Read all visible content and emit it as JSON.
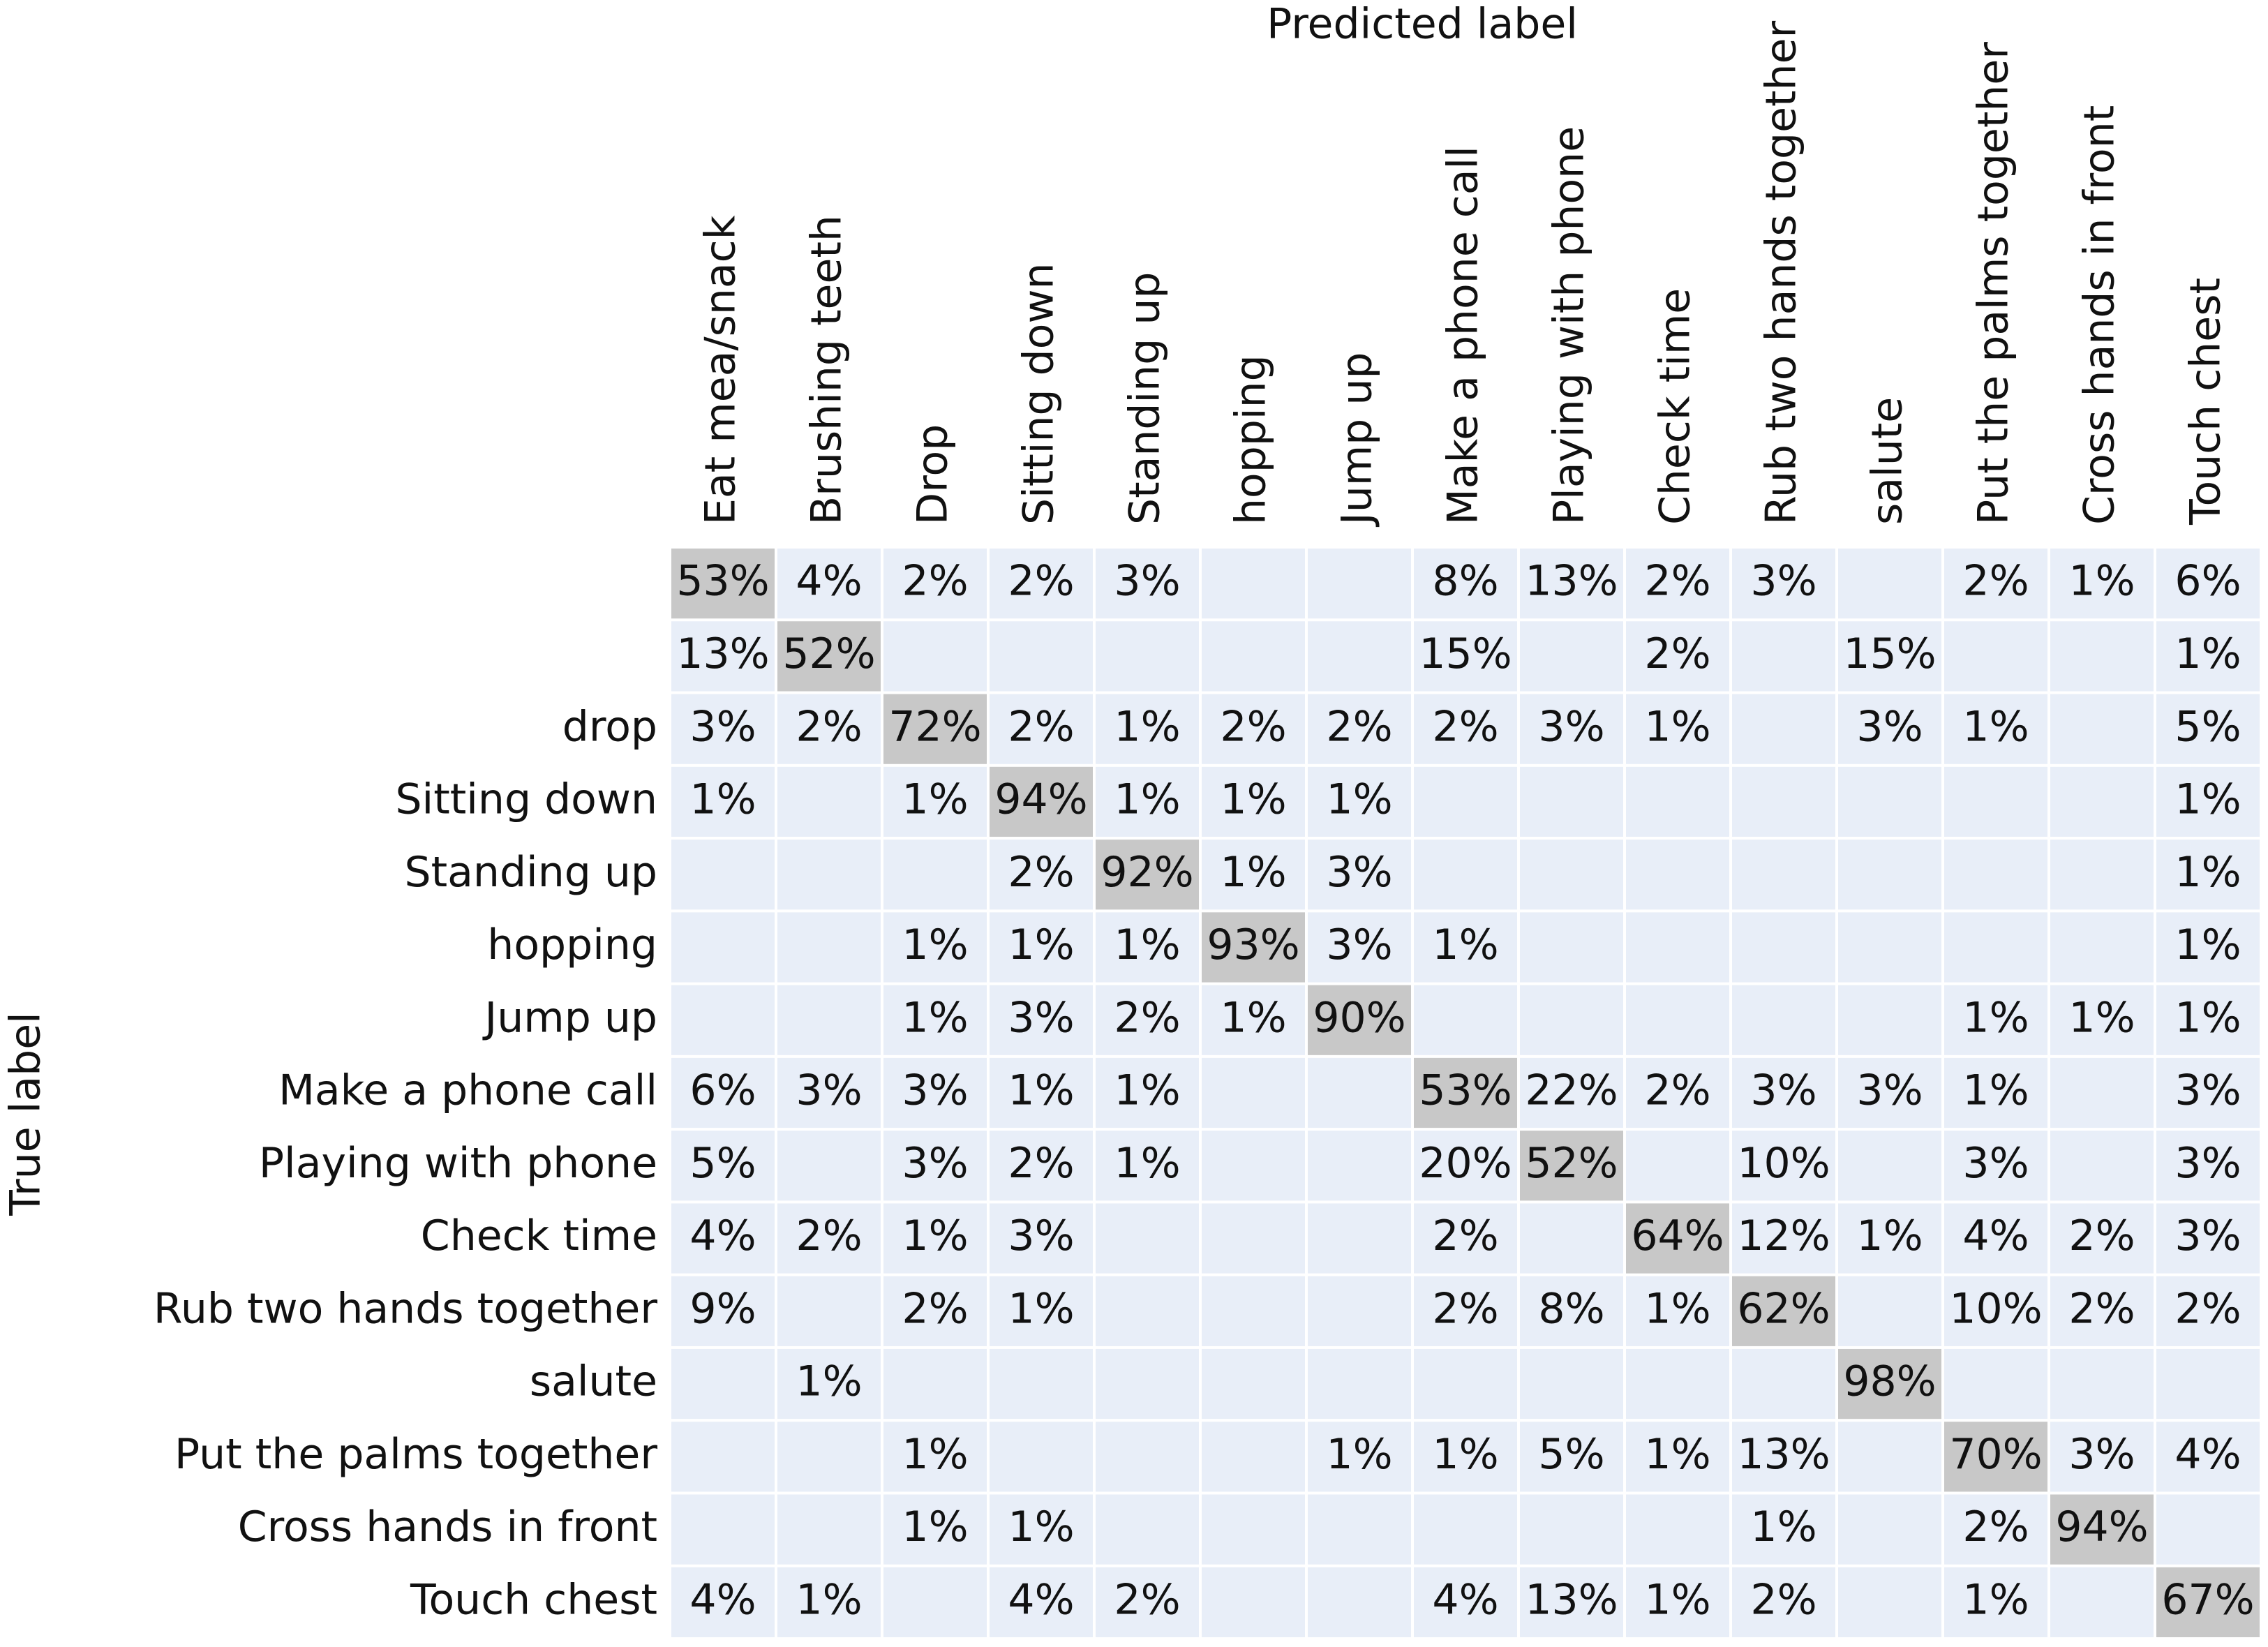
{
  "chart_data": {
    "type": "heatmap",
    "title": "Predicted label",
    "y_label": "True label",
    "x_categories": [
      "Eat mea/snack",
      "Brushing teeth",
      "Drop",
      "Sitting down",
      "Standing up",
      "hopping",
      "Jump up",
      "Make a phone call",
      "Playing with phone",
      "Check time",
      "Rub two hands together",
      "salute",
      "Put the palms together",
      "Cross hands in front",
      "Touch chest"
    ],
    "y_categories": [
      null,
      null,
      "drop",
      "Sitting down",
      "Standing up",
      "hopping",
      "Jump up",
      "Make a phone call",
      "Playing with phone",
      "Check time",
      "Rub two hands together",
      "salute",
      "Put the palms together",
      "Cross hands in front",
      "Touch chest"
    ],
    "values": [
      [
        53,
        4,
        2,
        2,
        3,
        null,
        null,
        8,
        13,
        2,
        3,
        null,
        2,
        1,
        6
      ],
      [
        13,
        52,
        null,
        null,
        null,
        null,
        null,
        15,
        null,
        2,
        null,
        15,
        null,
        null,
        1
      ],
      [
        3,
        2,
        72,
        2,
        1,
        2,
        2,
        2,
        3,
        1,
        null,
        3,
        1,
        null,
        5
      ],
      [
        1,
        null,
        1,
        94,
        1,
        1,
        1,
        null,
        null,
        null,
        null,
        null,
        null,
        null,
        1
      ],
      [
        null,
        null,
        null,
        2,
        92,
        1,
        3,
        null,
        null,
        null,
        null,
        null,
        null,
        null,
        1
      ],
      [
        null,
        null,
        1,
        1,
        1,
        93,
        3,
        1,
        null,
        null,
        null,
        null,
        null,
        null,
        1
      ],
      [
        null,
        null,
        1,
        3,
        2,
        1,
        90,
        null,
        null,
        null,
        null,
        null,
        1,
        1,
        1
      ],
      [
        6,
        3,
        3,
        1,
        1,
        null,
        null,
        53,
        22,
        2,
        3,
        3,
        1,
        null,
        3
      ],
      [
        5,
        null,
        3,
        2,
        1,
        null,
        null,
        20,
        52,
        null,
        10,
        null,
        3,
        null,
        3
      ],
      [
        4,
        2,
        1,
        3,
        null,
        null,
        null,
        2,
        null,
        64,
        12,
        1,
        4,
        2,
        3
      ],
      [
        9,
        null,
        2,
        1,
        null,
        null,
        null,
        2,
        8,
        1,
        62,
        null,
        10,
        2,
        2
      ],
      [
        null,
        1,
        null,
        null,
        null,
        null,
        null,
        null,
        null,
        null,
        null,
        98,
        null,
        null,
        null
      ],
      [
        null,
        null,
        1,
        null,
        null,
        null,
        1,
        1,
        5,
        1,
        13,
        null,
        70,
        3,
        4
      ],
      [
        null,
        null,
        1,
        1,
        null,
        null,
        null,
        null,
        null,
        null,
        1,
        null,
        2,
        94,
        null
      ],
      [
        4,
        1,
        null,
        4,
        2,
        null,
        null,
        4,
        13,
        1,
        2,
        null,
        1,
        null,
        67
      ]
    ],
    "value_labels": [
      [
        "53%",
        "4%",
        "2%",
        "2%",
        "3%",
        null,
        null,
        "8%",
        "13%",
        "2%",
        "3%",
        null,
        "2%",
        "1%",
        "6%"
      ],
      [
        "13%",
        "52%",
        null,
        null,
        null,
        null,
        null,
        "15%",
        null,
        "2%",
        null,
        "15%",
        null,
        null,
        "1%"
      ],
      [
        "3%",
        "2%",
        "72%",
        "2%",
        "1%",
        "2%",
        "2%",
        "2%",
        "3%",
        "1%",
        null,
        "3%",
        "1%",
        null,
        "5%"
      ],
      [
        "1%",
        null,
        "1%",
        "94%",
        "1%",
        "1%",
        "1%",
        null,
        null,
        null,
        null,
        null,
        null,
        null,
        "1%"
      ],
      [
        null,
        null,
        null,
        "2%",
        "92%",
        "1%",
        "3%",
        null,
        null,
        null,
        null,
        null,
        null,
        null,
        "1%"
      ],
      [
        null,
        null,
        "1%",
        "1%",
        "1%",
        "93%",
        "3%",
        "1%",
        null,
        null,
        null,
        null,
        null,
        null,
        "1%"
      ],
      [
        null,
        null,
        "1%",
        "3%",
        "2%",
        "1%",
        "90%",
        null,
        null,
        null,
        null,
        null,
        "1%",
        "1%",
        "1%"
      ],
      [
        "6%",
        "3%",
        "3%",
        "1%",
        "1%",
        null,
        null,
        "53%",
        "22%",
        "2%",
        "3%",
        "3%",
        "1%",
        null,
        "3%"
      ],
      [
        "5%",
        null,
        "3%",
        "2%",
        "1%",
        null,
        null,
        "20%",
        "52%",
        null,
        "10%",
        null,
        "3%",
        null,
        "3%"
      ],
      [
        "4%",
        "2%",
        "1%",
        "3%",
        null,
        null,
        null,
        "2%",
        null,
        "64%",
        "12%",
        "1%",
        "4%",
        "2%",
        "3%"
      ],
      [
        "9%",
        null,
        "2%",
        "1%",
        null,
        null,
        null,
        "2%",
        "8%",
        "1%",
        "62%",
        null,
        "10%",
        "2%",
        "2%"
      ],
      [
        null,
        "1%",
        null,
        null,
        null,
        null,
        null,
        null,
        null,
        null,
        null,
        "98%",
        null,
        null,
        null
      ],
      [
        null,
        null,
        "1%",
        null,
        null,
        null,
        "1%",
        "1%",
        "5%",
        "1%",
        "13%",
        null,
        "70%",
        "3%",
        "4%"
      ],
      [
        null,
        null,
        "1%",
        "1%",
        null,
        null,
        null,
        null,
        null,
        null,
        "1%",
        null,
        "2%",
        "94%",
        null
      ],
      [
        "4%",
        "1%",
        null,
        "4%",
        "2%",
        null,
        null,
        "4%",
        "13%",
        "1%",
        "2%",
        null,
        "1%",
        null,
        "67%"
      ]
    ],
    "cell_color": "#e8eef8",
    "diagonal_color": "#c8c8c8"
  }
}
